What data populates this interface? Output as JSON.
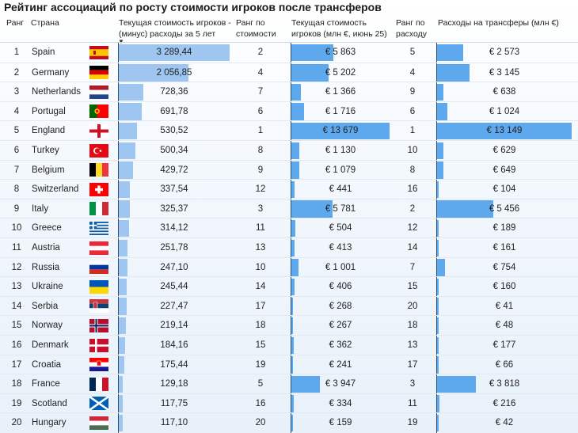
{
  "title": "Рейтинг ассоциаций по росту стоимости игроков после трансферов",
  "headers": {
    "rank": "Ранг",
    "country": "Страна",
    "net": "Текущая стоимость игроков - (минус) расходы за 5 лет",
    "rank_value": "Ранг по стоимости",
    "value": "Текущая стоимость игроков (млн €, июнь 25)",
    "rank_spend": "Ранг по расходу",
    "spend": "Расходы на трансферы (млн €)"
  },
  "chart_data": {
    "type": "table",
    "columns": [
      "Ранг",
      "Страна",
      "Текущая стоимость игроков - (минус) расходы за 5 лет",
      "Ранг по стоимости",
      "Текущая стоимость игроков (млн €, июнь 25)",
      "Ранг по расходу",
      "Расходы на трансферы (млн €)"
    ],
    "rows": [
      {
        "rank": "1",
        "country": "Spain",
        "flag": "es",
        "net": 3289.44,
        "net_label": "3 289,44",
        "rank_value": "2",
        "value": 5863,
        "value_label": "€ 5 863",
        "rank_spend": "5",
        "spend": 2573,
        "spend_label": "€ 2 573"
      },
      {
        "rank": "2",
        "country": "Germany",
        "flag": "de",
        "net": 2056.85,
        "net_label": "2 056,85",
        "rank_value": "4",
        "value": 5202,
        "value_label": "€ 5 202",
        "rank_spend": "4",
        "spend": 3145,
        "spend_label": "€ 3 145"
      },
      {
        "rank": "3",
        "country": "Netherlands",
        "flag": "nl",
        "net": 728.36,
        "net_label": "728,36",
        "rank_value": "7",
        "value": 1366,
        "value_label": "€ 1 366",
        "rank_spend": "9",
        "spend": 638,
        "spend_label": "€ 638"
      },
      {
        "rank": "4",
        "country": "Portugal",
        "flag": "pt",
        "net": 691.78,
        "net_label": "691,78",
        "rank_value": "6",
        "value": 1716,
        "value_label": "€ 1 716",
        "rank_spend": "6",
        "spend": 1024,
        "spend_label": "€ 1 024"
      },
      {
        "rank": "5",
        "country": "England",
        "flag": "en",
        "net": 530.52,
        "net_label": "530,52",
        "rank_value": "1",
        "value": 13679,
        "value_label": "€ 13 679",
        "rank_spend": "1",
        "spend": 13149,
        "spend_label": "€ 13 149"
      },
      {
        "rank": "6",
        "country": "Turkey",
        "flag": "tr",
        "net": 500.34,
        "net_label": "500,34",
        "rank_value": "8",
        "value": 1130,
        "value_label": "€ 1 130",
        "rank_spend": "10",
        "spend": 629,
        "spend_label": "€ 629"
      },
      {
        "rank": "7",
        "country": "Belgium",
        "flag": "be",
        "net": 429.72,
        "net_label": "429,72",
        "rank_value": "9",
        "value": 1079,
        "value_label": "€ 1 079",
        "rank_spend": "8",
        "spend": 649,
        "spend_label": "€ 649"
      },
      {
        "rank": "8",
        "country": "Switzerland",
        "flag": "ch",
        "net": 337.54,
        "net_label": "337,54",
        "rank_value": "12",
        "value": 441,
        "value_label": "€ 441",
        "rank_spend": "16",
        "spend": 104,
        "spend_label": "€ 104"
      },
      {
        "rank": "9",
        "country": "Italy",
        "flag": "it",
        "net": 325.37,
        "net_label": "325,37",
        "rank_value": "3",
        "value": 5781,
        "value_label": "€ 5 781",
        "rank_spend": "2",
        "spend": 5456,
        "spend_label": "€ 5 456"
      },
      {
        "rank": "10",
        "country": "Greece",
        "flag": "gr",
        "net": 314.12,
        "net_label": "314,12",
        "rank_value": "11",
        "value": 504,
        "value_label": "€ 504",
        "rank_spend": "12",
        "spend": 189,
        "spend_label": "€ 189"
      },
      {
        "rank": "11",
        "country": "Austria",
        "flag": "at",
        "net": 251.78,
        "net_label": "251,78",
        "rank_value": "13",
        "value": 413,
        "value_label": "€ 413",
        "rank_spend": "14",
        "spend": 161,
        "spend_label": "€ 161"
      },
      {
        "rank": "12",
        "country": "Russia",
        "flag": "ru",
        "net": 247.1,
        "net_label": "247,10",
        "rank_value": "10",
        "value": 1001,
        "value_label": "€ 1 001",
        "rank_spend": "7",
        "spend": 754,
        "spend_label": "€ 754"
      },
      {
        "rank": "13",
        "country": "Ukraine",
        "flag": "ua",
        "net": 245.44,
        "net_label": "245,44",
        "rank_value": "14",
        "value": 406,
        "value_label": "€ 406",
        "rank_spend": "15",
        "spend": 160,
        "spend_label": "€ 160"
      },
      {
        "rank": "14",
        "country": "Serbia",
        "flag": "rs",
        "net": 227.47,
        "net_label": "227,47",
        "rank_value": "17",
        "value": 268,
        "value_label": "€ 268",
        "rank_spend": "20",
        "spend": 41,
        "spend_label": "€ 41"
      },
      {
        "rank": "15",
        "country": "Norway",
        "flag": "no",
        "net": 219.14,
        "net_label": "219,14",
        "rank_value": "18",
        "value": 267,
        "value_label": "€ 267",
        "rank_spend": "18",
        "spend": 48,
        "spend_label": "€ 48"
      },
      {
        "rank": "16",
        "country": "Denmark",
        "flag": "dk",
        "net": 184.16,
        "net_label": "184,16",
        "rank_value": "15",
        "value": 362,
        "value_label": "€ 362",
        "rank_spend": "13",
        "spend": 177,
        "spend_label": "€ 177"
      },
      {
        "rank": "17",
        "country": "Croatia",
        "flag": "hr",
        "net": 175.44,
        "net_label": "175,44",
        "rank_value": "19",
        "value": 241,
        "value_label": "€ 241",
        "rank_spend": "17",
        "spend": 66,
        "spend_label": "€ 66"
      },
      {
        "rank": "18",
        "country": "France",
        "flag": "fr",
        "net": 129.18,
        "net_label": "129,18",
        "rank_value": "5",
        "value": 3947,
        "value_label": "€ 3 947",
        "rank_spend": "3",
        "spend": 3818,
        "spend_label": "€ 3 818"
      },
      {
        "rank": "19",
        "country": "Scotland",
        "flag": "sc",
        "net": 117.75,
        "net_label": "117,75",
        "rank_value": "16",
        "value": 334,
        "value_label": "€ 334",
        "rank_spend": "11",
        "spend": 216,
        "spend_label": "€ 216"
      },
      {
        "rank": "20",
        "country": "Hungary",
        "flag": "hu",
        "net": 117.1,
        "net_label": "117,10",
        "rank_value": "20",
        "value": 159,
        "value_label": "€ 159",
        "rank_spend": "19",
        "spend": 42,
        "spend_label": "€ 42"
      }
    ],
    "colors": {
      "bar_light": "#9ec6f0",
      "bar_dark": "#5ea8ee",
      "divider": "#2e4e73"
    },
    "sort": {
      "column": "net",
      "order": "descending"
    }
  }
}
